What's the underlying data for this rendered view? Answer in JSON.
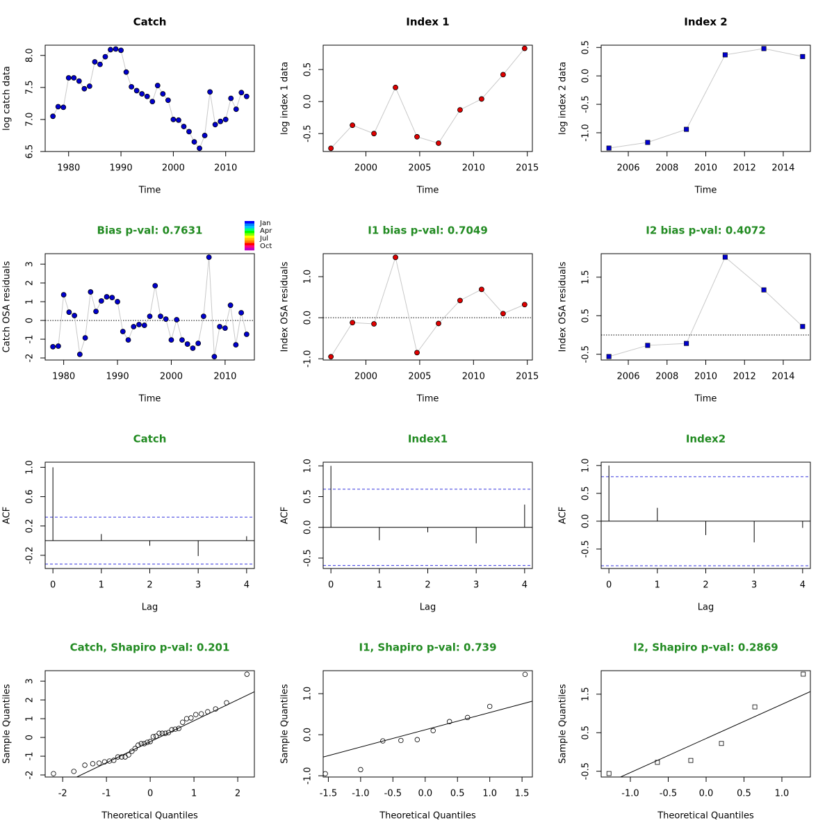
{
  "chart_data": [
    {
      "type": "line",
      "title": "Catch",
      "title_color": "#000000",
      "xlabel": "Time",
      "ylabel": "log catch data",
      "x": [
        1977,
        1978,
        1979,
        1980,
        1981,
        1982,
        1983,
        1984,
        1985,
        1986,
        1987,
        1988,
        1989,
        1990,
        1991,
        1992,
        1993,
        1994,
        1995,
        1996,
        1997,
        1998,
        1999,
        2000,
        2001,
        2002,
        2003,
        2004,
        2005,
        2006,
        2007,
        2008,
        2009,
        2010,
        2011,
        2012,
        2013,
        2014
      ],
      "values": [
        7.05,
        7.2,
        7.19,
        7.65,
        7.65,
        7.6,
        7.48,
        7.52,
        7.9,
        7.86,
        7.98,
        8.09,
        8.1,
        8.08,
        7.74,
        7.51,
        7.45,
        7.4,
        7.36,
        7.28,
        7.53,
        7.4,
        7.3,
        7.0,
        6.99,
        6.89,
        6.81,
        6.65,
        6.55,
        6.75,
        7.43,
        6.92,
        6.97,
        7.0,
        7.33,
        7.16,
        7.42,
        7.36
      ],
      "color": "#0000cd",
      "marker": "circle",
      "xlim": [
        1975.52,
        2015.48
      ],
      "ylim": [
        6.5,
        8.16
      ],
      "xticks": [
        1980,
        1990,
        2000,
        2010
      ],
      "yticks": [
        6.5,
        {
          "value": 7,
          "label": "7.0"
        },
        7.5,
        {
          "value": 8,
          "label": "8.0"
        }
      ]
    },
    {
      "type": "line",
      "title": "Index 1",
      "title_color": "#000000",
      "xlabel": "Time",
      "ylabel": "log index 1 data",
      "x": [
        1996.75,
        1998.75,
        2000.75,
        2002.75,
        2004.75,
        2006.75,
        2008.75,
        2010.75,
        2012.75,
        2014.75
      ],
      "values": [
        -0.73,
        -0.37,
        -0.5,
        0.22,
        -0.55,
        -0.65,
        -0.13,
        0.04,
        0.42,
        0.83
      ],
      "color": "#e00000",
      "marker": "circle",
      "xlim": [
        1996.03,
        2015.47
      ],
      "ylim": [
        -0.78,
        0.88
      ],
      "xticks": [
        2000,
        2005,
        2010,
        2015
      ],
      "yticks": [
        -0.5,
        {
          "value": 0,
          "label": "0.0"
        },
        0.5
      ]
    },
    {
      "type": "line",
      "title": "Index 2",
      "title_color": "#000000",
      "xlabel": "Time",
      "ylabel": "log index 2 data",
      "x": [
        2005,
        2007,
        2009,
        2011,
        2013,
        2015
      ],
      "values": [
        -1.27,
        -1.17,
        -0.94,
        0.37,
        0.48,
        0.34
      ],
      "color": "#0000cd",
      "marker": "square",
      "xlim": [
        2004.6,
        2015.4
      ],
      "ylim": [
        -1.33,
        0.54
      ],
      "xticks": [
        2006,
        2008,
        2010,
        2012,
        2014
      ],
      "yticks": [
        {
          "value": -1,
          "label": "-1.0"
        },
        -0.5,
        {
          "value": 0,
          "label": "0.0"
        },
        0.5
      ]
    },
    {
      "type": "line",
      "title": "Bias p-val: 0.7631",
      "title_color": "#228b22",
      "xlabel": "Time",
      "ylabel": "Catch OSA residuals",
      "x": [
        1978,
        1979,
        1980,
        1981,
        1982,
        1983,
        1984,
        1985,
        1986,
        1987,
        1988,
        1989,
        1990,
        1991,
        1992,
        1993,
        1994,
        1995,
        1996,
        1997,
        1998,
        1999,
        2000,
        2001,
        2002,
        2003,
        2004,
        2005,
        2006,
        2007,
        2008,
        2009,
        2010,
        2011,
        2012,
        2013,
        2014
      ],
      "values": [
        -1.4,
        -1.37,
        1.37,
        0.44,
        0.26,
        -1.81,
        -0.93,
        1.52,
        0.48,
        1.04,
        1.26,
        1.22,
        1.0,
        -0.59,
        -1.04,
        -0.33,
        -0.22,
        -0.26,
        0.22,
        1.85,
        0.22,
        0.07,
        -1.04,
        0.04,
        -1.04,
        -1.26,
        -1.48,
        -1.22,
        0.22,
        3.37,
        -1.93,
        -0.33,
        -0.41,
        0.81,
        -1.3,
        0.41,
        -0.74
      ],
      "color": "#0000cd",
      "marker": "circle",
      "reference_line": 0,
      "xlim": [
        1976.56,
        2015.44
      ],
      "ylim": [
        -2.11,
        3.56
      ],
      "xticks": [
        1980,
        1990,
        2000,
        2010
      ],
      "yticks": [
        -2,
        -1,
        0,
        1,
        2,
        3
      ],
      "colorbar": {
        "labels": [
          "Jan",
          "Apr",
          "Jul",
          "Oct"
        ],
        "colors": [
          "#0000ff",
          "#0080ff",
          "#00c0ff",
          "#00ff80",
          "#00ff00",
          "#80ff00",
          "#ffff00",
          "#ffc000",
          "#ff8000",
          "#ff0000",
          "#ff0080",
          "#c000c0"
        ]
      }
    },
    {
      "type": "line",
      "title": "I1 bias p-val: 0.7049",
      "title_color": "#228b22",
      "xlabel": "Time",
      "ylabel": "Index OSA residuals",
      "x": [
        1996.75,
        1998.75,
        2000.75,
        2002.75,
        2004.75,
        2006.75,
        2008.75,
        2010.75,
        2012.75,
        2014.75
      ],
      "values": [
        -0.95,
        -0.12,
        -0.15,
        1.47,
        -0.85,
        -0.14,
        0.42,
        0.69,
        0.1,
        0.32
      ],
      "color": "#e00000",
      "marker": "circle",
      "reference_line": 0,
      "xlim": [
        1996.03,
        2015.47
      ],
      "ylim": [
        -1.03,
        1.56
      ],
      "xticks": [
        2000,
        2005,
        2010,
        2015
      ],
      "yticks": [
        {
          "value": -1,
          "label": "-1.0"
        },
        {
          "value": 0,
          "label": "0.0"
        },
        {
          "value": 1,
          "label": "1.0"
        }
      ]
    },
    {
      "type": "line",
      "title": "I2 bias p-val: 0.4072",
      "title_color": "#228b22",
      "xlabel": "Time",
      "ylabel": "Index OSA residuals",
      "x": [
        2005,
        2007,
        2009,
        2011,
        2013,
        2015
      ],
      "values": [
        -0.56,
        -0.27,
        -0.22,
        2.02,
        1.17,
        0.22
      ],
      "color": "#0000cd",
      "marker": "square",
      "reference_line": 0,
      "xlim": [
        2004.6,
        2015.4
      ],
      "ylim": [
        -0.65,
        2.11
      ],
      "xticks": [
        2006,
        2008,
        2010,
        2012,
        2014
      ],
      "yticks": [
        -0.5,
        0.5,
        1.5
      ]
    },
    {
      "type": "acf",
      "title": "Catch",
      "title_color": "#228b22",
      "xlabel": "Lag",
      "ylabel": "ACF",
      "x": [
        0,
        1,
        2,
        3,
        4
      ],
      "values": [
        1.0,
        0.09,
        -0.07,
        -0.21,
        0.06
      ],
      "ci": 0.32,
      "xlim": [
        -0.16,
        4.16
      ],
      "ylim": [
        -0.38,
        1.07
      ],
      "xticks": [
        0,
        1,
        2,
        3,
        4
      ],
      "yticks": [
        -0.2,
        0.2,
        0.6,
        {
          "value": 1,
          "label": "1.0"
        }
      ]
    },
    {
      "type": "acf",
      "title": "Index1",
      "title_color": "#228b22",
      "xlabel": "Lag",
      "ylabel": "ACF",
      "x": [
        0,
        1,
        2,
        3,
        4
      ],
      "values": [
        1.0,
        -0.21,
        -0.08,
        -0.26,
        0.37
      ],
      "ci": 0.62,
      "xlim": [
        -0.16,
        4.16
      ],
      "ylim": [
        -0.67,
        1.06
      ],
      "xticks": [
        0,
        1,
        2,
        3,
        4
      ],
      "yticks": [
        -0.5,
        {
          "value": 0,
          "label": "0.0"
        },
        0.5,
        {
          "value": 1,
          "label": "1.0"
        }
      ]
    },
    {
      "type": "acf",
      "title": "Index2",
      "title_color": "#228b22",
      "xlabel": "Lag",
      "ylabel": "ACF",
      "x": [
        0,
        1,
        2,
        3,
        4
      ],
      "values": [
        1.0,
        0.24,
        -0.25,
        -0.38,
        -0.12
      ],
      "ci": 0.8,
      "xlim": [
        -0.16,
        4.16
      ],
      "ylim": [
        -0.85,
        1.06
      ],
      "xticks": [
        0,
        1,
        2,
        3,
        4
      ],
      "yticks": [
        -0.5,
        {
          "value": 0,
          "label": "0.0"
        },
        0.5,
        {
          "value": 1,
          "label": "1.0"
        }
      ]
    },
    {
      "type": "qq",
      "title": "Catch, Shapiro p-val: 0.201",
      "title_color": "#228b22",
      "xlabel": "Theoretical Quantiles",
      "ylabel": "Sample Quantiles",
      "x": [
        -2.21,
        -1.745,
        -1.494,
        -1.313,
        -1.167,
        -1.042,
        -0.932,
        -0.832,
        -0.74,
        -0.653,
        -0.572,
        -0.493,
        -0.418,
        -0.346,
        -0.275,
        -0.205,
        -0.136,
        -0.068,
        0,
        0.068,
        0.136,
        0.205,
        0.275,
        0.346,
        0.418,
        0.493,
        0.572,
        0.653,
        0.74,
        0.832,
        0.932,
        1.042,
        1.167,
        1.313,
        1.494,
        1.745,
        2.21
      ],
      "values": [
        -1.93,
        -1.81,
        -1.48,
        -1.4,
        -1.37,
        -1.3,
        -1.26,
        -1.22,
        -1.04,
        -1.04,
        -1.04,
        -0.93,
        -0.74,
        -0.59,
        -0.41,
        -0.33,
        -0.33,
        -0.26,
        -0.22,
        0.04,
        0.07,
        0.22,
        0.22,
        0.22,
        0.26,
        0.41,
        0.44,
        0.48,
        0.81,
        1.0,
        1.04,
        1.22,
        1.26,
        1.37,
        1.52,
        1.85,
        3.37
      ],
      "marker": "open-circle",
      "qqline": {
        "intercept": -0.23,
        "slope": 1.12
      },
      "xlim": [
        -2.4,
        2.38
      ],
      "ylim": [
        -2.11,
        3.56
      ],
      "xticks": [
        -2,
        -1,
        0,
        1,
        2
      ],
      "yticks": [
        -2,
        -1,
        0,
        1,
        2,
        3
      ]
    },
    {
      "type": "qq",
      "title": "I1, Shapiro p-val: 0.739",
      "title_color": "#228b22",
      "xlabel": "Theoretical Quantiles",
      "ylabel": "Sample Quantiles",
      "x": [
        -1.547,
        -1.0,
        -0.656,
        -0.376,
        -0.123,
        0.123,
        0.376,
        0.656,
        1.0,
        1.547
      ],
      "values": [
        -0.95,
        -0.85,
        -0.15,
        -0.14,
        -0.12,
        0.1,
        0.32,
        0.42,
        0.69,
        1.47
      ],
      "marker": "open-circle",
      "qqline": {
        "intercept": 0.12,
        "slope": 0.42
      },
      "xlim": [
        -1.58,
        1.66
      ],
      "ylim": [
        -1.03,
        1.56
      ],
      "xticks": [
        -1.5,
        {
          "value": -1,
          "label": "-1.0"
        },
        -0.5,
        {
          "value": 0,
          "label": "0.0"
        },
        0.5,
        {
          "value": 1,
          "label": "1.0"
        },
        1.5
      ],
      "yticks": [
        {
          "value": -1,
          "label": "-1.0"
        },
        {
          "value": 0,
          "label": "0.0"
        },
        {
          "value": 1,
          "label": "1.0"
        }
      ]
    },
    {
      "type": "qq",
      "title": "I2, Shapiro p-val: 0.2869",
      "title_color": "#228b22",
      "xlabel": "Theoretical Quantiles",
      "ylabel": "Sample Quantiles",
      "x": [
        -1.282,
        -0.643,
        -0.202,
        0.202,
        0.643,
        1.282
      ],
      "values": [
        -0.56,
        -0.27,
        -0.22,
        0.22,
        1.17,
        2.02
      ],
      "marker": "open-square",
      "qqline": {
        "intercept": 0.35,
        "slope": 0.885
      },
      "xlim": [
        -1.385,
        1.376
      ],
      "ylim": [
        -0.65,
        2.11
      ],
      "xticks": [
        {
          "value": -1,
          "label": "-1.0"
        },
        -0.5,
        {
          "value": 0,
          "label": "0.0"
        },
        0.5,
        {
          "value": 1,
          "label": "1.0"
        }
      ],
      "yticks": [
        -0.5,
        0.5,
        1.5
      ]
    }
  ]
}
